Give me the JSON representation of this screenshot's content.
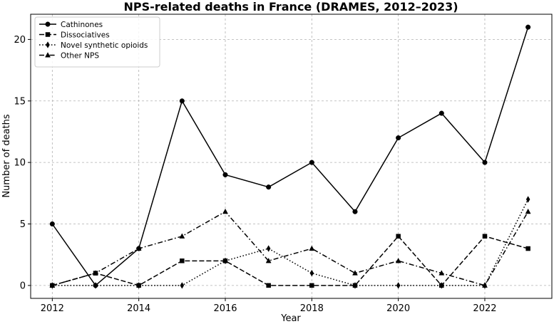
{
  "chart_data": {
    "type": "line",
    "title": "NPS-related deaths in France (DRAMES, 2012–2023)",
    "xlabel": "Year",
    "ylabel": "Number of deaths",
    "x": [
      2012,
      2013,
      2014,
      2015,
      2016,
      2017,
      2018,
      2019,
      2020,
      2021,
      2022,
      2023
    ],
    "xticks": [
      "2012",
      "2014",
      "2016",
      "2018",
      "2020",
      "2022"
    ],
    "yticks": [
      "0",
      "5",
      "10",
      "15",
      "20"
    ],
    "xlim": [
      2011.5,
      2023.55
    ],
    "ylim": [
      -1.05,
      22.05
    ],
    "grid": true,
    "legend_position": "top-left",
    "series": [
      {
        "name": "Cathinones",
        "marker": "circle",
        "linestyle": "solid",
        "values": [
          5,
          0,
          3,
          15,
          9,
          8,
          10,
          6,
          12,
          14,
          10,
          21
        ]
      },
      {
        "name": "Dissociatives",
        "marker": "square",
        "linestyle": "dashed",
        "values": [
          0,
          1,
          0,
          2,
          2,
          0,
          0,
          0,
          4,
          0,
          4,
          3
        ]
      },
      {
        "name": "Novel synthetic opioids",
        "marker": "diamond",
        "linestyle": "dotted",
        "values": [
          0,
          0,
          0,
          0,
          2,
          3,
          1,
          0,
          0,
          0,
          0,
          7
        ]
      },
      {
        "name": "Other NPS",
        "marker": "triangle",
        "linestyle": "dashdot",
        "values": [
          0,
          1,
          3,
          4,
          6,
          2,
          3,
          1,
          2,
          1,
          0,
          6
        ]
      }
    ]
  }
}
